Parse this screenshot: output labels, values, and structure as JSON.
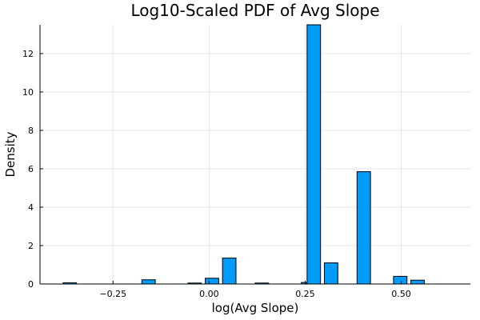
{
  "chart_data": {
    "type": "bar",
    "title": "Log10-Scaled PDF of Avg Slope",
    "xlabel": "log(Avg Slope)",
    "ylabel": "Density",
    "xlim": [
      -0.44,
      0.68
    ],
    "ylim": [
      0,
      13.5
    ],
    "x_ticks": [
      -0.25,
      0.0,
      0.25,
      0.5
    ],
    "x_tick_labels": [
      "−0.25",
      "0.00",
      "0.25",
      "0.50"
    ],
    "y_ticks": [
      0,
      2,
      4,
      6,
      8,
      10,
      12
    ],
    "y_tick_labels": [
      "0",
      "2",
      "4",
      "6",
      "8",
      "10",
      "12"
    ],
    "grid": true,
    "legend": "none",
    "bar_color": "#009af9",
    "bars": [
      {
        "x_start": -0.38,
        "x_end": -0.345,
        "value": 0.06
      },
      {
        "x_start": -0.34,
        "x_end": -0.305,
        "value": 0.0
      },
      {
        "x_start": -0.3,
        "x_end": -0.265,
        "value": 0.0
      },
      {
        "x_start": -0.26,
        "x_end": -0.225,
        "value": 0.0
      },
      {
        "x_start": -0.22,
        "x_end": -0.185,
        "value": 0.0
      },
      {
        "x_start": -0.175,
        "x_end": -0.14,
        "value": 0.22
      },
      {
        "x_start": -0.1,
        "x_end": -0.065,
        "value": 0.0
      },
      {
        "x_start": -0.055,
        "x_end": -0.02,
        "value": 0.05
      },
      {
        "x_start": -0.01,
        "x_end": 0.025,
        "value": 0.3
      },
      {
        "x_start": 0.035,
        "x_end": 0.07,
        "value": 1.35
      },
      {
        "x_start": 0.12,
        "x_end": 0.155,
        "value": 0.05
      },
      {
        "x_start": 0.2,
        "x_end": 0.235,
        "value": 0.0
      },
      {
        "x_start": 0.24,
        "x_end": 0.253,
        "value": 0.08
      },
      {
        "x_start": 0.255,
        "x_end": 0.29,
        "value": 13.5
      },
      {
        "x_start": 0.3,
        "x_end": 0.335,
        "value": 1.1
      },
      {
        "x_start": 0.345,
        "x_end": 0.38,
        "value": 0.0
      },
      {
        "x_start": 0.385,
        "x_end": 0.42,
        "value": 5.85
      },
      {
        "x_start": 0.435,
        "x_end": 0.47,
        "value": 0.0
      },
      {
        "x_start": 0.48,
        "x_end": 0.515,
        "value": 0.4
      },
      {
        "x_start": 0.525,
        "x_end": 0.56,
        "value": 0.2
      },
      {
        "x_start": 0.57,
        "x_end": 0.605,
        "value": 0.0
      },
      {
        "x_start": 0.615,
        "x_end": 0.65,
        "value": 0.0
      }
    ]
  }
}
